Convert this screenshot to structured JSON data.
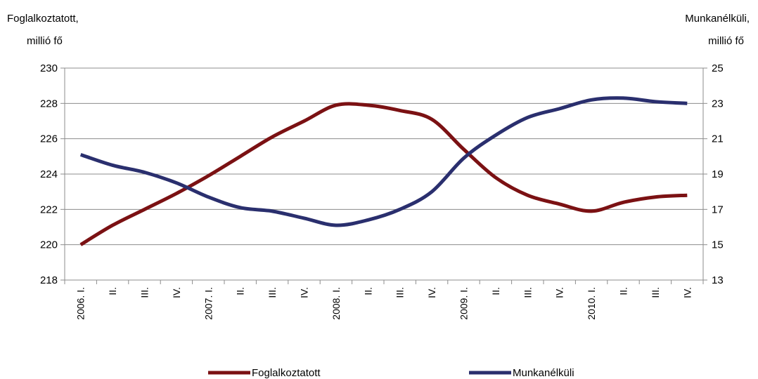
{
  "chart_data": {
    "type": "line",
    "title": "",
    "left_axis_title": [
      "Foglalkoztatott,",
      "millió fő"
    ],
    "right_axis_title": [
      "Munkanélküli,",
      "millió fő"
    ],
    "left_ylim": [
      218,
      230
    ],
    "left_ticks": [
      "218",
      "220",
      "222",
      "224",
      "226",
      "228",
      "230"
    ],
    "right_ylim": [
      13,
      25
    ],
    "right_ticks": [
      "13",
      "15",
      "17",
      "19",
      "21",
      "23",
      "25"
    ],
    "categories": [
      "2006. I.",
      "II.",
      "III.",
      "IV.",
      "2007. I.",
      "II.",
      "III.",
      "IV.",
      "2008. I.",
      "II.",
      "III.",
      "IV.",
      "2009. I.",
      "II.",
      "III.",
      "IV.",
      "2010. I.",
      "II.",
      "III.",
      "IV."
    ],
    "series": [
      {
        "name": "Foglalkoztatott",
        "axis": "left",
        "color": "#7b1113",
        "values": [
          220.0,
          221.1,
          222.0,
          222.9,
          223.9,
          225.0,
          226.1,
          227.0,
          227.9,
          227.9,
          227.6,
          227.1,
          225.4,
          223.8,
          222.8,
          222.3,
          221.9,
          222.4,
          222.7,
          222.8
        ]
      },
      {
        "name": "Munkanélküli",
        "axis": "right",
        "color": "#2a2f6e",
        "values": [
          20.1,
          19.5,
          19.1,
          18.5,
          17.7,
          17.1,
          16.9,
          16.5,
          16.1,
          16.4,
          17.0,
          18.0,
          19.9,
          21.2,
          22.2,
          22.7,
          23.2,
          23.3,
          23.1,
          23.0
        ]
      }
    ],
    "legend": "bottom"
  }
}
